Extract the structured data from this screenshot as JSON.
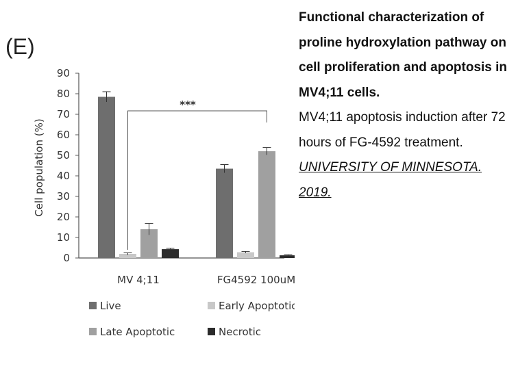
{
  "panel_label": "(E)",
  "caption": {
    "title": "Functional characterization of proline hydroxylation pathway on cell proliferation and apoptosis in MV4;11 cells.",
    "body": "MV4;11 apoptosis induction after 72 hours of FG-4592 treatment.",
    "source": "UNIVERSITY OF MINNESOTA. 2019."
  },
  "chart_data": {
    "type": "bar",
    "title": "",
    "xlabel": "",
    "ylabel": "Cell population (%)",
    "ylim": [
      0,
      90
    ],
    "yticks": [
      0,
      10,
      20,
      30,
      40,
      50,
      60,
      70,
      80,
      90
    ],
    "categories": [
      "MV 4;11",
      "FG4592 100uM"
    ],
    "series": [
      {
        "name": "Live",
        "color": "#6e6e6e",
        "values": [
          78.5,
          43.5
        ],
        "errors": [
          2.5,
          2.0
        ]
      },
      {
        "name": "Early Apoptotic",
        "color": "#c8c8c8",
        "values": [
          2.0,
          2.8
        ],
        "errors": [
          0.5,
          0.4
        ]
      },
      {
        "name": "Late Apoptotic",
        "color": "#a0a0a0",
        "values": [
          14.0,
          52.0
        ],
        "errors": [
          2.8,
          1.8
        ]
      },
      {
        "name": "Necrotic",
        "color": "#2b2b2b",
        "values": [
          4.3,
          1.3
        ],
        "errors": [
          0.4,
          0.3
        ]
      }
    ],
    "annotation": {
      "text": "***",
      "between": [
        "MV 4;11 Early Apoptotic",
        "FG4592 100uM Late Apoptotic"
      ]
    },
    "grid": false,
    "legend_position": "bottom"
  }
}
